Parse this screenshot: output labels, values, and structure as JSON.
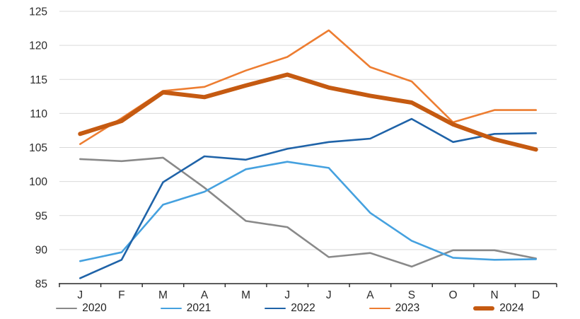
{
  "chart_data": {
    "type": "line",
    "categories": [
      "J",
      "F",
      "M",
      "A",
      "M",
      "J",
      "J",
      "A",
      "S",
      "O",
      "N",
      "D"
    ],
    "series": [
      {
        "name": "2020",
        "color": "#898989",
        "stroke_width": 2.6,
        "values": [
          103.3,
          103.0,
          103.5,
          99.1,
          94.2,
          93.3,
          88.9,
          89.5,
          87.5,
          89.9,
          89.9,
          88.7
        ]
      },
      {
        "name": "2021",
        "color": "#45A1DF",
        "stroke_width": 2.6,
        "values": [
          88.3,
          89.6,
          96.6,
          98.5,
          101.8,
          102.9,
          102.0,
          95.4,
          91.3,
          88.8,
          88.5,
          88.6
        ]
      },
      {
        "name": "2022",
        "color": "#1F63A8",
        "stroke_width": 2.6,
        "values": [
          85.8,
          88.5,
          99.9,
          103.7,
          103.2,
          104.8,
          105.8,
          106.3,
          109.2,
          105.8,
          107.0,
          107.1
        ]
      },
      {
        "name": "2023",
        "color": "#ED7D31",
        "stroke_width": 2.6,
        "values": [
          105.5,
          109.3,
          113.3,
          113.9,
          116.3,
          118.3,
          122.2,
          116.8,
          114.7,
          108.7,
          110.5,
          110.5
        ]
      },
      {
        "name": "2024",
        "color": "#C55A11",
        "stroke_width": 6,
        "values": [
          107.0,
          108.9,
          113.1,
          112.4,
          114.1,
          115.7,
          113.8,
          112.6,
          111.6,
          108.4,
          106.2,
          104.7
        ]
      }
    ],
    "ylim": [
      85,
      125
    ],
    "y_ticks": [
      85,
      90,
      95,
      100,
      105,
      110,
      115,
      120,
      125
    ],
    "grid": true,
    "grid_color": "#D9D9D9",
    "axis_color": "#262626",
    "tick_label_color": "#2b2b2b",
    "legend_position": "bottom",
    "legend_entries": [
      "2020",
      "2021",
      "2022",
      "2023",
      "2024"
    ]
  }
}
